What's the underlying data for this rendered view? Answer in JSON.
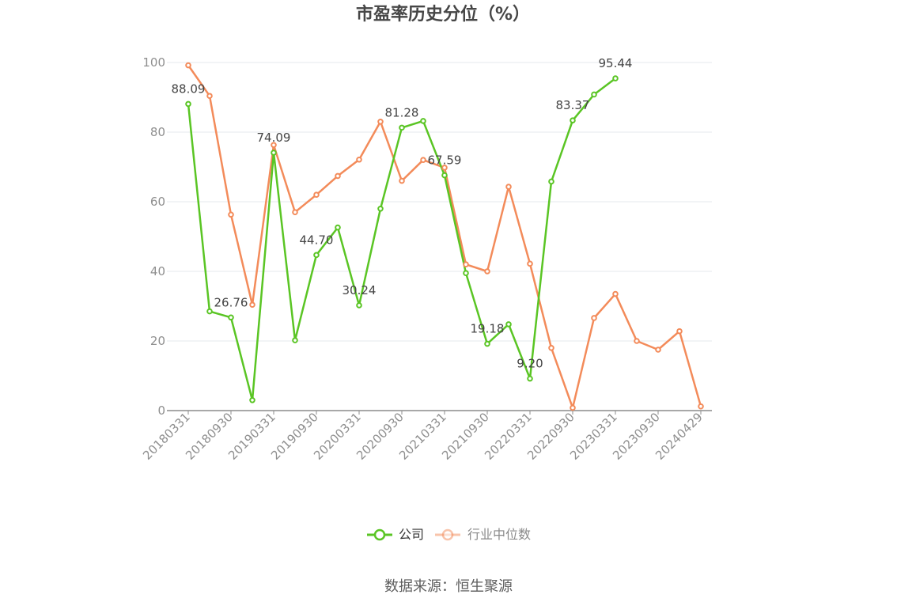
{
  "chart_data": {
    "type": "line",
    "title": "市盈率历史分位（%）",
    "source": "数据来源：恒生聚源",
    "ylim": [
      0,
      100
    ],
    "y_ticks": [
      0,
      20,
      40,
      60,
      80,
      100
    ],
    "x_ticks": [
      "20180331",
      "20180930",
      "20190331",
      "20190930",
      "20200331",
      "20200930",
      "20210331",
      "20210930",
      "20220331",
      "20220930",
      "20230331",
      "20230930",
      "20240429"
    ],
    "x": [
      "20180331",
      "20180630",
      "20180930",
      "20181231",
      "20190331",
      "20190630",
      "20190930",
      "20191231",
      "20200331",
      "20200630",
      "20200930",
      "20201231",
      "20210331",
      "20210630",
      "20210930",
      "20211231",
      "20220331",
      "20220630",
      "20220930",
      "20221231",
      "20230331",
      "20230630",
      "20230930",
      "20231231",
      "20240429"
    ],
    "grid": true,
    "legend_position": "bottom",
    "series": [
      {
        "name": "公司",
        "color": "#5ac524",
        "values": [
          88.09,
          28.5,
          26.76,
          3.0,
          74.09,
          20.2,
          44.7,
          52.6,
          30.24,
          58.0,
          81.28,
          83.2,
          67.59,
          39.5,
          19.18,
          24.8,
          9.2,
          65.8,
          83.37,
          90.8,
          95.44,
          null,
          null,
          null,
          null
        ],
        "labels": [
          "88.09",
          null,
          "26.76",
          null,
          "74.09",
          null,
          "44.70",
          null,
          "30.24",
          null,
          "81.28",
          null,
          "67.59",
          null,
          "19.18",
          null,
          "9.20",
          null,
          "83.37",
          null,
          "95.44",
          null,
          null,
          null,
          null
        ]
      },
      {
        "name": "行业中位数",
        "color": "#f38b5a",
        "values": [
          99.2,
          90.4,
          56.3,
          30.4,
          76.3,
          57.0,
          62.0,
          67.4,
          72.1,
          83.0,
          66.0,
          72.0,
          69.8,
          42.0,
          40.0,
          64.3,
          42.2,
          18.0,
          0.8,
          26.6,
          33.5,
          20.0,
          17.5,
          22.8,
          1.2
        ]
      }
    ]
  }
}
